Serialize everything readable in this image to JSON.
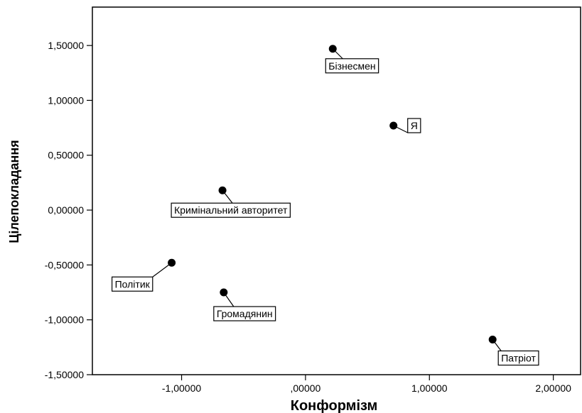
{
  "chart_data": {
    "type": "scatter",
    "xlabel": "Конформізм",
    "ylabel": "Цілепокладання",
    "xlim": [
      -1.72,
      2.22
    ],
    "ylim": [
      -1.5,
      1.85
    ],
    "x_ticks": [
      -1.0,
      0.0,
      1.0,
      2.0
    ],
    "x_tick_labels": [
      "-1,00000",
      ",00000",
      "1,00000",
      "2,00000"
    ],
    "y_ticks": [
      -1.5,
      -1.0,
      -0.5,
      0.0,
      0.5,
      1.0,
      1.5
    ],
    "y_tick_labels": [
      "-1,50000",
      "-1,00000",
      "-0,50000",
      "0,00000",
      "0,50000",
      "1,00000",
      "1,50000"
    ],
    "grid": false,
    "legend": "none",
    "marker_color": "#000000",
    "points": [
      {
        "label": "Бізнесмен",
        "x": 0.22,
        "y": 1.47
      },
      {
        "label": "Я",
        "x": 0.71,
        "y": 0.77
      },
      {
        "label": "Кримінальний авторитет",
        "x": -0.67,
        "y": 0.18
      },
      {
        "label": "Політик",
        "x": -1.08,
        "y": -0.48
      },
      {
        "label": "Громадянин",
        "x": -0.66,
        "y": -0.75
      },
      {
        "label": "Патріот",
        "x": 1.51,
        "y": -1.18
      }
    ]
  }
}
